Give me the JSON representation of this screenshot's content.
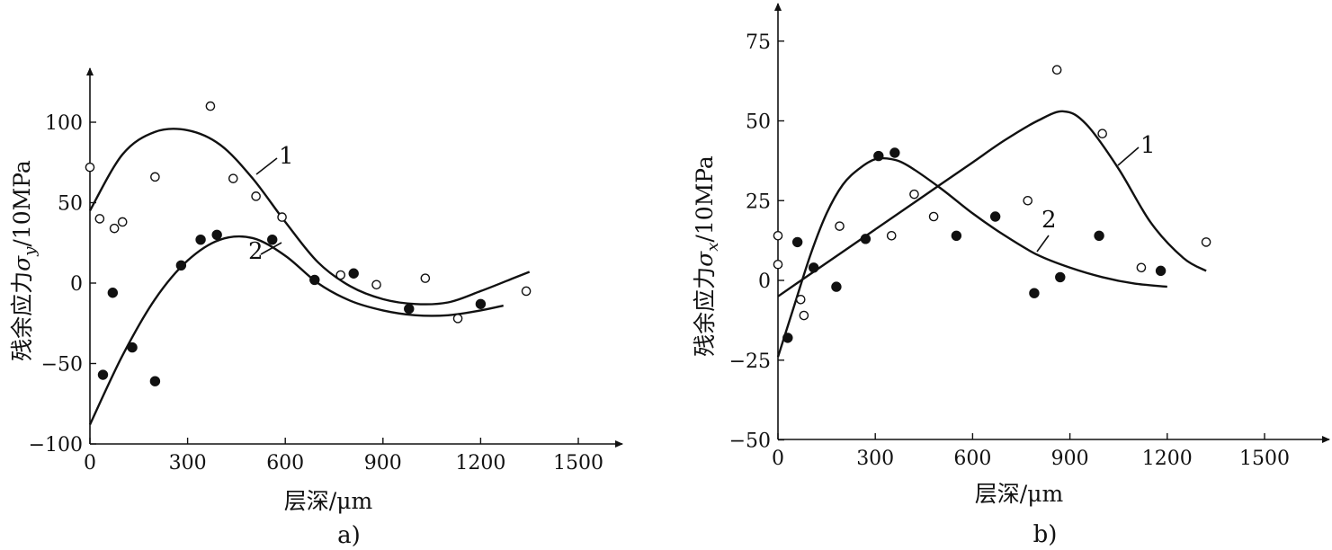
{
  "chart_data": [
    {
      "type": "scatter",
      "panel_label": "a)",
      "xlabel": "层深/μm",
      "ylabel": "残余应力σy/10MPa",
      "ylabel_main": "残余应力",
      "ylabel_symbol": "σ",
      "ylabel_sub": "y",
      "ylabel_unit": "/10MPa",
      "xlim": [
        0,
        1500
      ],
      "ylim": [
        -100,
        100
      ],
      "x_ticks": [
        0,
        300,
        600,
        900,
        1200,
        1500
      ],
      "y_ticks": [
        -100,
        -50,
        0,
        50,
        100
      ],
      "x_tick_labels": [
        "0",
        "300",
        "600",
        "900",
        "1200",
        "1500"
      ],
      "y_tick_labels": [
        "−100",
        "−50",
        "0",
        "50",
        "100"
      ],
      "grid": false,
      "series": [
        {
          "name": "1",
          "marker": "open-circle",
          "points": [
            [
              0,
              72
            ],
            [
              30,
              40
            ],
            [
              75,
              34
            ],
            [
              100,
              38
            ],
            [
              200,
              66
            ],
            [
              370,
              110
            ],
            [
              440,
              65
            ],
            [
              510,
              54
            ],
            [
              590,
              41
            ],
            [
              770,
              5
            ],
            [
              880,
              -1
            ],
            [
              1030,
              3
            ],
            [
              1130,
              -22
            ],
            [
              1340,
              -5
            ]
          ],
          "fit": [
            [
              0,
              45
            ],
            [
              100,
              80
            ],
            [
              200,
              94
            ],
            [
              300,
              95
            ],
            [
              400,
              86
            ],
            [
              500,
              65
            ],
            [
              600,
              38
            ],
            [
              700,
              13
            ],
            [
              800,
              -2
            ],
            [
              900,
              -10
            ],
            [
              1000,
              -13
            ],
            [
              1100,
              -12
            ],
            [
              1200,
              -5
            ],
            [
              1300,
              3
            ],
            [
              1350,
              7
            ]
          ]
        },
        {
          "name": "2",
          "marker": "filled-circle",
          "points": [
            [
              40,
              -57
            ],
            [
              70,
              -6
            ],
            [
              130,
              -40
            ],
            [
              200,
              -61
            ],
            [
              280,
              11
            ],
            [
              340,
              27
            ],
            [
              390,
              30
            ],
            [
              560,
              27
            ],
            [
              690,
              2
            ],
            [
              810,
              6
            ],
            [
              980,
              -16
            ],
            [
              1200,
              -13
            ]
          ],
          "fit": [
            [
              0,
              -88
            ],
            [
              100,
              -45
            ],
            [
              200,
              -10
            ],
            [
              300,
              14
            ],
            [
              400,
              27
            ],
            [
              500,
              28
            ],
            [
              600,
              17
            ],
            [
              700,
              0
            ],
            [
              800,
              -11
            ],
            [
              900,
              -17
            ],
            [
              1000,
              -20
            ],
            [
              1100,
              -20
            ],
            [
              1200,
              -17
            ],
            [
              1270,
              -14
            ]
          ]
        }
      ]
    },
    {
      "type": "scatter",
      "panel_label": "b)",
      "xlabel": "层深/μm",
      "ylabel": "残余应力σx/10MPa",
      "ylabel_main": "残余应力",
      "ylabel_symbol": "σ",
      "ylabel_sub": "x",
      "ylabel_unit": "/10MPa",
      "xlim": [
        0,
        1500
      ],
      "ylim": [
        -50,
        75
      ],
      "x_ticks": [
        0,
        300,
        600,
        900,
        1200,
        1500
      ],
      "y_ticks": [
        -50,
        -25,
        0,
        25,
        50,
        75
      ],
      "x_tick_labels": [
        "0",
        "300",
        "600",
        "900",
        "1200",
        "1500"
      ],
      "y_tick_labels": [
        "−50",
        "−25",
        "0",
        "25",
        "50",
        "75"
      ],
      "grid": false,
      "series": [
        {
          "name": "1",
          "marker": "open-circle",
          "points": [
            [
              0,
              5
            ],
            [
              0,
              14
            ],
            [
              70,
              -6
            ],
            [
              80,
              -11
            ],
            [
              190,
              17
            ],
            [
              350,
              14
            ],
            [
              420,
              27
            ],
            [
              480,
              20
            ],
            [
              770,
              25
            ],
            [
              860,
              66
            ],
            [
              1000,
              46
            ],
            [
              1120,
              4
            ],
            [
              1320,
              12
            ]
          ],
          "fit": [
            [
              0,
              -5
            ],
            [
              100,
              2
            ],
            [
              200,
              9
            ],
            [
              300,
              16
            ],
            [
              400,
              23
            ],
            [
              500,
              30
            ],
            [
              600,
              37
            ],
            [
              700,
              44
            ],
            [
              800,
              50
            ],
            [
              880,
              53
            ],
            [
              950,
              49
            ],
            [
              1050,
              35
            ],
            [
              1150,
              18
            ],
            [
              1250,
              7
            ],
            [
              1320,
              3
            ]
          ]
        },
        {
          "name": "2",
          "marker": "filled-circle",
          "points": [
            [
              30,
              -18
            ],
            [
              60,
              12
            ],
            [
              110,
              4
            ],
            [
              180,
              -2
            ],
            [
              270,
              13
            ],
            [
              310,
              39
            ],
            [
              360,
              40
            ],
            [
              550,
              14
            ],
            [
              670,
              20
            ],
            [
              790,
              -4
            ],
            [
              870,
              1
            ],
            [
              990,
              14
            ],
            [
              1180,
              3
            ]
          ],
          "fit": [
            [
              0,
              -24
            ],
            [
              50,
              -8
            ],
            [
              100,
              8
            ],
            [
              150,
              21
            ],
            [
              200,
              30
            ],
            [
              250,
              35
            ],
            [
              300,
              38
            ],
            [
              350,
              38
            ],
            [
              400,
              36
            ],
            [
              500,
              29
            ],
            [
              600,
              21
            ],
            [
              700,
              14
            ],
            [
              800,
              8
            ],
            [
              900,
              4
            ],
            [
              1000,
              1
            ],
            [
              1100,
              -1
            ],
            [
              1200,
              -2
            ]
          ]
        }
      ]
    }
  ]
}
